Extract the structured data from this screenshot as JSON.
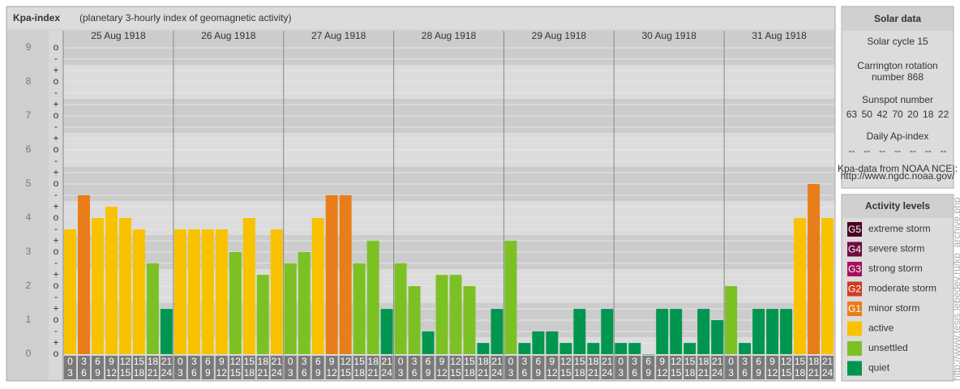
{
  "chart_data": {
    "type": "bar",
    "title": "Kpa-index",
    "subtitle": "(planetary 3-hourly index of geomagnetic activity)",
    "days": [
      "25 Aug 1918",
      "26 Aug 1918",
      "27 Aug 1918",
      "28 Aug 1918",
      "29 Aug 1918",
      "30 Aug 1918",
      "31 Aug 1918"
    ],
    "time_labels": [
      [
        "0",
        "3"
      ],
      [
        "3",
        "6"
      ],
      [
        "6",
        "9"
      ],
      [
        "9",
        "12"
      ],
      [
        "12",
        "15"
      ],
      [
        "15",
        "18"
      ],
      [
        "18",
        "21"
      ],
      [
        "21",
        "24"
      ]
    ],
    "values": [
      3.67,
      4.67,
      4,
      4.33,
      4,
      3.67,
      2.67,
      1.33,
      3.67,
      3.67,
      3.67,
      3.67,
      3,
      4,
      2.33,
      3.67,
      2.67,
      3,
      4,
      4.67,
      4.67,
      2.67,
      3.33,
      1.33,
      2.67,
      2,
      0.67,
      2.33,
      2.33,
      2,
      0.33,
      1.33,
      3.33,
      0.33,
      0.67,
      0.67,
      0.33,
      1.33,
      0.33,
      1.33,
      0.33,
      0.33,
      0,
      1.33,
      1.33,
      0.33,
      1.33,
      1,
      2,
      0.33,
      1.33,
      1.33,
      1.33,
      4,
      5,
      4
    ],
    "colors": [
      "#f8c200",
      "#e87d1a",
      "#f8c200",
      "#f8c200",
      "#f8c200",
      "#f8c200",
      "#7cc124",
      "#00964f",
      "#f8c200",
      "#f8c200",
      "#f8c200",
      "#f8c200",
      "#7cc124",
      "#f8c200",
      "#7cc124",
      "#f8c200",
      "#7cc124",
      "#7cc124",
      "#f8c200",
      "#e87d1a",
      "#e87d1a",
      "#7cc124",
      "#7cc124",
      "#00964f",
      "#7cc124",
      "#7cc124",
      "#00964f",
      "#7cc124",
      "#7cc124",
      "#7cc124",
      "#00964f",
      "#00964f",
      "#7cc124",
      "#00964f",
      "#00964f",
      "#00964f",
      "#00964f",
      "#00964f",
      "#00964f",
      "#00964f",
      "#00964f",
      "#00964f",
      "#00964f",
      "#00964f",
      "#00964f",
      "#00964f",
      "#00964f",
      "#00964f",
      "#7cc124",
      "#00964f",
      "#00964f",
      "#00964f",
      "#00964f",
      "#f8c200",
      "#e87d1a",
      "#f8c200"
    ],
    "ylim": [
      0,
      9.5
    ],
    "yticks": [
      0,
      1,
      2,
      3,
      4,
      5,
      6,
      7,
      8,
      9
    ],
    "yminor": [
      {
        "value": 0,
        "label": "o"
      },
      {
        "value": 0.33,
        "label": "+"
      },
      {
        "value": 0.67,
        "label": "-"
      },
      {
        "value": 1,
        "label": "o"
      },
      {
        "value": 1.33,
        "label": "+"
      },
      {
        "value": 1.67,
        "label": "-"
      },
      {
        "value": 2,
        "label": "o"
      },
      {
        "value": 2.33,
        "label": "+"
      },
      {
        "value": 2.67,
        "label": "-"
      },
      {
        "value": 3,
        "label": "o"
      },
      {
        "value": 3.33,
        "label": "+"
      },
      {
        "value": 3.67,
        "label": "-"
      },
      {
        "value": 4,
        "label": "o"
      },
      {
        "value": 4.33,
        "label": "+"
      },
      {
        "value": 4.67,
        "label": "-"
      },
      {
        "value": 5,
        "label": "o"
      },
      {
        "value": 5.33,
        "label": "+"
      },
      {
        "value": 5.67,
        "label": "-"
      },
      {
        "value": 6,
        "label": "o"
      },
      {
        "value": 6.33,
        "label": "+"
      },
      {
        "value": 6.67,
        "label": "-"
      },
      {
        "value": 7,
        "label": "o"
      },
      {
        "value": 7.33,
        "label": "+"
      },
      {
        "value": 7.67,
        "label": "-"
      },
      {
        "value": 8,
        "label": "o"
      },
      {
        "value": 8.33,
        "label": "+"
      },
      {
        "value": 8.67,
        "label": "-"
      },
      {
        "value": 9,
        "label": "o"
      }
    ]
  },
  "solar": {
    "title": "Solar data",
    "cycle": "Solar cycle 15",
    "carrington": [
      "Carrington rotation",
      "number 868"
    ],
    "sunspot_title": "Sunspot number",
    "sunspots": [
      63,
      50,
      42,
      70,
      20,
      18,
      22
    ],
    "ap_title": "Daily Ap-index",
    "ap": [
      "--",
      "--",
      "--",
      "--",
      "--",
      "--",
      "--"
    ],
    "source": [
      "Kpa-data from NOAA NCEI:",
      "http://www.ngdc.noaa.gov/"
    ]
  },
  "levels": {
    "title": "Activity levels",
    "items": [
      {
        "badge": "G5",
        "label": "extreme storm",
        "color": "#4a0024"
      },
      {
        "badge": "G4",
        "label": "severe storm",
        "color": "#6e0c40"
      },
      {
        "badge": "G3",
        "label": "strong storm",
        "color": "#a3125e"
      },
      {
        "badge": "G2",
        "label": "moderate storm",
        "color": "#d23b1f"
      },
      {
        "badge": "G1",
        "label": "minor storm",
        "color": "#e87d1a"
      },
      {
        "badge": "",
        "label": "active",
        "color": "#f8c200"
      },
      {
        "badge": "",
        "label": "unsettled",
        "color": "#7cc124"
      },
      {
        "badge": "",
        "label": "quiet",
        "color": "#00964f"
      }
    ]
  },
  "credit": "http://www.tesis.lebedev.ru/kp_archive.php"
}
